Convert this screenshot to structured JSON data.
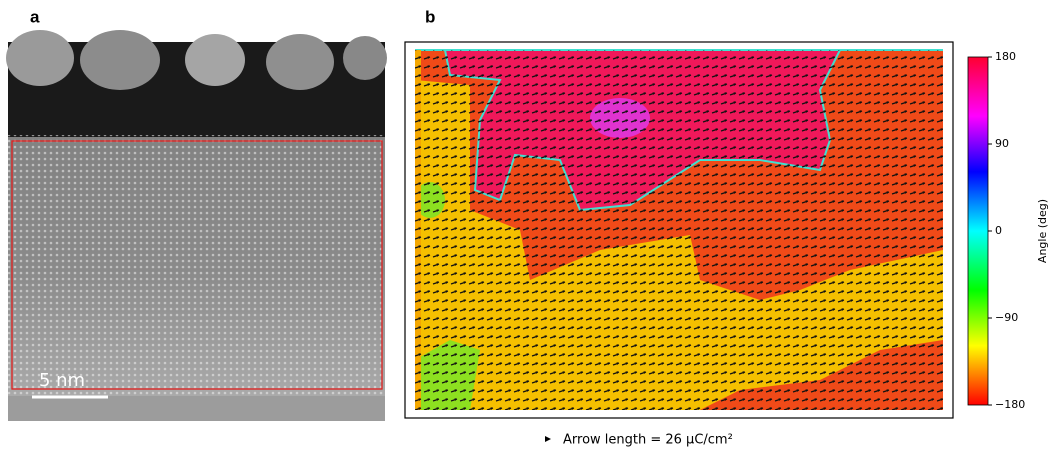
{
  "panels": [
    {
      "label": "a",
      "scale_bar": "5 nm"
    },
    {
      "label": "b",
      "colorbar": {
        "label": "Angle (deg)",
        "lim": [
          -180,
          180
        ],
        "ticks": [
          {
            "value": 180,
            "label": "180"
          },
          {
            "value": 90,
            "label": "90"
          },
          {
            "value": 0,
            "label": "0"
          },
          {
            "value": -90,
            "label": "−90"
          },
          {
            "value": -180,
            "label": "−180"
          }
        ]
      },
      "caption": "Arrow length = 26 μC/cm²"
    }
  ]
}
